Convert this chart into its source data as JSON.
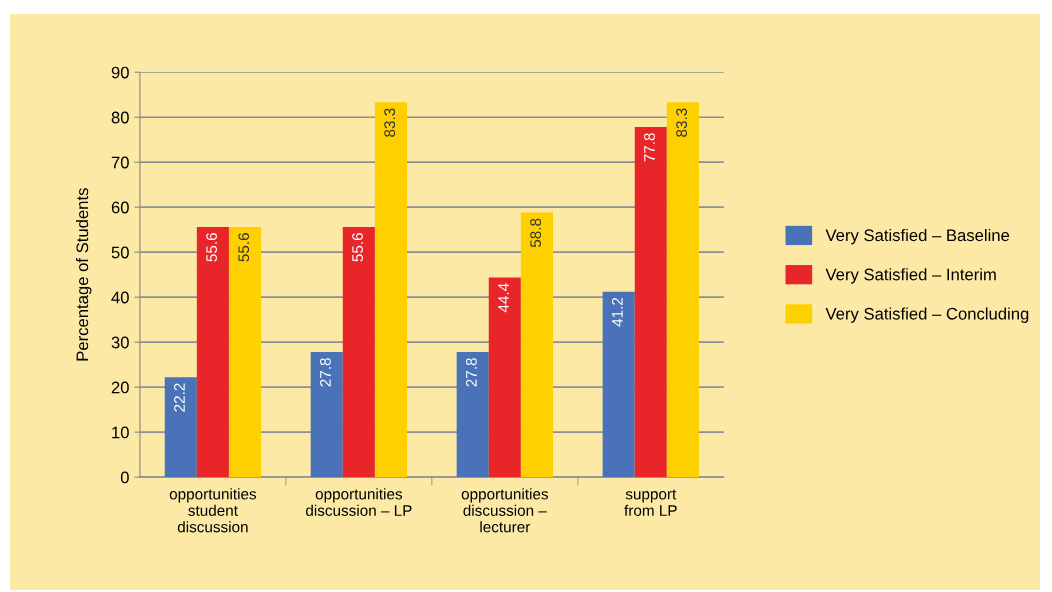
{
  "chart_data": {
    "type": "bar",
    "ylabel": "Percentage of Students",
    "categories": [
      "opportunities\nstudent\ndiscussion",
      "opportunities\ndiscussion – LP",
      "opportunities\ndiscussion –\nlecturer",
      "support\nfrom LP"
    ],
    "series": [
      {
        "name": "Very Satisfied – Baseline",
        "color": "#4a72b8",
        "values": [
          22.2,
          27.8,
          27.8,
          41.2
        ]
      },
      {
        "name": "Very Satisfied – Interim",
        "color": "#e8262a",
        "values": [
          55.6,
          55.6,
          44.4,
          77.8
        ]
      },
      {
        "name": "Very Satisfied – Concluding",
        "color": "#ffd000",
        "values": [
          55.6,
          83.3,
          58.8,
          83.3
        ]
      }
    ],
    "ylim": [
      0,
      90
    ],
    "yticks": [
      0,
      10,
      20,
      30,
      40,
      50,
      60,
      70,
      80,
      90
    ],
    "grid": "y",
    "legend": "right",
    "data_labels": true
  }
}
